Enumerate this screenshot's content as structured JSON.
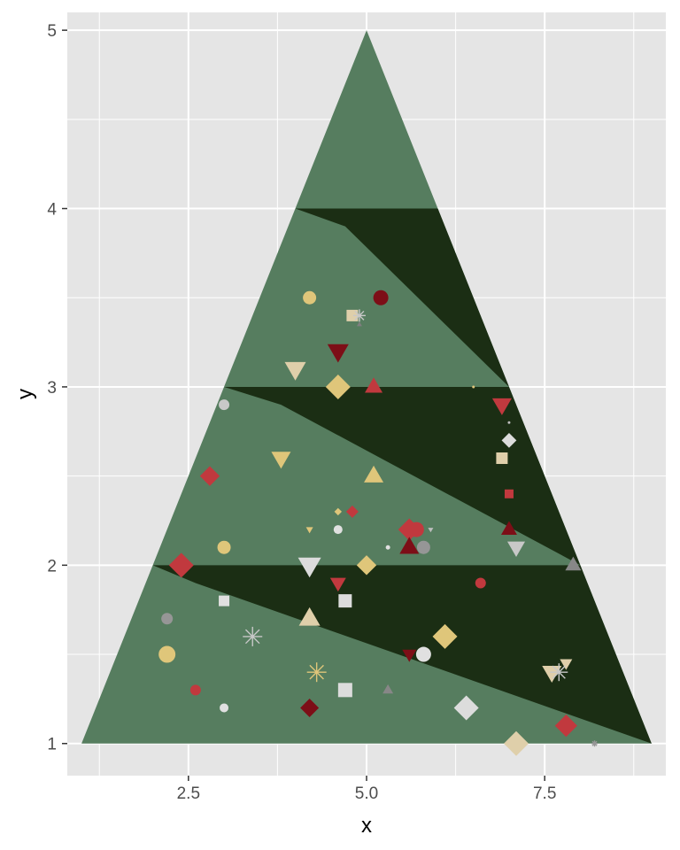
{
  "chart_data": {
    "type": "scatter",
    "title": "",
    "xlabel": "x",
    "ylabel": "y",
    "xlim": [
      0.8,
      9.2
    ],
    "ylim": [
      0.82,
      5.1
    ],
    "x_ticks": [
      2.5,
      5.0,
      7.5
    ],
    "x_tick_labels": [
      "2.5",
      "5.0",
      "7.5"
    ],
    "y_ticks": [
      1,
      2,
      3,
      4,
      5
    ],
    "y_tick_labels": [
      "1",
      "2",
      "3",
      "4",
      "5"
    ],
    "x_minor": [
      1.25,
      3.75,
      6.25,
      8.75
    ],
    "y_minor": [
      1.5,
      2.5,
      3.5,
      4.5
    ],
    "grid": true,
    "legend": "none",
    "colors": {
      "panel": "#e5e5e5",
      "grid": "#ffffff",
      "tree_light": "#567d5f",
      "tree_dark": "#1b2e14"
    },
    "tree_light": [
      [
        1,
        1
      ],
      [
        5,
        5
      ],
      [
        9,
        1
      ]
    ],
    "tree_dark": [
      [
        [
          4,
          4
        ],
        [
          6,
          4
        ],
        [
          7,
          3
        ],
        [
          4.7,
          3.9
        ]
      ],
      [
        [
          3,
          3
        ],
        [
          7,
          3
        ],
        [
          8,
          2
        ],
        [
          3.8,
          2.9
        ]
      ],
      [
        [
          2,
          2
        ],
        [
          8,
          2
        ],
        [
          9,
          1
        ],
        [
          2.6,
          1.9
        ]
      ]
    ],
    "points": [
      {
        "x": 4.2,
        "y": 3.5,
        "shape": "circle",
        "size": 15,
        "color": "#dfc67a"
      },
      {
        "x": 5.2,
        "y": 3.5,
        "shape": "circle",
        "size": 17,
        "color": "#7d0e17"
      },
      {
        "x": 4.8,
        "y": 3.4,
        "shape": "square",
        "size": 13,
        "color": "#dfcfaa"
      },
      {
        "x": 4.9,
        "y": 3.4,
        "shape": "asterisk",
        "size": 14,
        "color": "#c8c8c8"
      },
      {
        "x": 4.9,
        "y": 3.35,
        "shape": "triangle",
        "size": 6,
        "color": "#7f7f7f"
      },
      {
        "x": 4.0,
        "y": 3.1,
        "shape": "triangle-down",
        "size": 24,
        "color": "#dfcfaa"
      },
      {
        "x": 4.6,
        "y": 3.2,
        "shape": "triangle-down",
        "size": 24,
        "color": "#7d0e17"
      },
      {
        "x": 4.6,
        "y": 3.0,
        "shape": "diamond",
        "size": 20,
        "color": "#dfc67a"
      },
      {
        "x": 5.1,
        "y": 3.0,
        "shape": "triangle",
        "size": 20,
        "color": "#c1393e"
      },
      {
        "x": 3.0,
        "y": 2.9,
        "shape": "circle",
        "size": 12,
        "color": "#c8c8c8"
      },
      {
        "x": 6.5,
        "y": 3.0,
        "shape": "circle",
        "size": 3,
        "color": "#dfc67a"
      },
      {
        "x": 6.9,
        "y": 2.9,
        "shape": "triangle-down",
        "size": 22,
        "color": "#c1393e"
      },
      {
        "x": 7.0,
        "y": 2.8,
        "shape": "circle",
        "size": 3,
        "color": "#bebebe"
      },
      {
        "x": 7.0,
        "y": 2.7,
        "shape": "diamond",
        "size": 12,
        "color": "#dcdcdc"
      },
      {
        "x": 6.9,
        "y": 2.6,
        "shape": "square",
        "size": 13,
        "color": "#dfcfaa"
      },
      {
        "x": 2.8,
        "y": 2.5,
        "shape": "diamond",
        "size": 16,
        "color": "#c1393e"
      },
      {
        "x": 3.8,
        "y": 2.6,
        "shape": "triangle-down",
        "size": 22,
        "color": "#dfc67a"
      },
      {
        "x": 5.1,
        "y": 2.5,
        "shape": "triangle",
        "size": 22,
        "color": "#dfc67a"
      },
      {
        "x": 7.0,
        "y": 2.4,
        "shape": "square",
        "size": 10,
        "color": "#c1393e"
      },
      {
        "x": 7.0,
        "y": 2.2,
        "shape": "triangle",
        "size": 18,
        "color": "#7d0e17"
      },
      {
        "x": 7.1,
        "y": 2.1,
        "shape": "triangle-down",
        "size": 20,
        "color": "#c8c8c8"
      },
      {
        "x": 7.9,
        "y": 2.0,
        "shape": "triangle",
        "size": 18,
        "color": "#878787"
      },
      {
        "x": 4.6,
        "y": 2.3,
        "shape": "diamond",
        "size": 6,
        "color": "#dfc67a"
      },
      {
        "x": 4.8,
        "y": 2.3,
        "shape": "diamond",
        "size": 10,
        "color": "#c1393e"
      },
      {
        "x": 4.6,
        "y": 2.2,
        "shape": "circle",
        "size": 10,
        "color": "#e0e0e0"
      },
      {
        "x": 4.2,
        "y": 2.2,
        "shape": "triangle-down",
        "size": 8,
        "color": "#dfc67a"
      },
      {
        "x": 5.3,
        "y": 2.1,
        "shape": "circle",
        "size": 5,
        "color": "#e0e0e0"
      },
      {
        "x": 5.7,
        "y": 2.2,
        "shape": "circle",
        "size": 17,
        "color": "#c1393e"
      },
      {
        "x": 5.8,
        "y": 2.1,
        "shape": "circle",
        "size": 15,
        "color": "#969696"
      },
      {
        "x": 5.6,
        "y": 2.2,
        "shape": "diamond",
        "size": 18,
        "color": "#c1393e"
      },
      {
        "x": 5.6,
        "y": 2.1,
        "shape": "triangle",
        "size": 22,
        "color": "#7d0e17"
      },
      {
        "x": 5.9,
        "y": 2.2,
        "shape": "triangle-down",
        "size": 6,
        "color": "#bebebe"
      },
      {
        "x": 3.0,
        "y": 2.1,
        "shape": "circle",
        "size": 15,
        "color": "#dfc67a"
      },
      {
        "x": 2.4,
        "y": 2.0,
        "shape": "diamond",
        "size": 20,
        "color": "#c1393e"
      },
      {
        "x": 4.2,
        "y": 2.0,
        "shape": "triangle-down",
        "size": 26,
        "color": "#dcdcdc"
      },
      {
        "x": 5.0,
        "y": 2.0,
        "shape": "diamond",
        "size": 16,
        "color": "#dfc67a"
      },
      {
        "x": 4.6,
        "y": 1.9,
        "shape": "triangle-down",
        "size": 18,
        "color": "#c1393e"
      },
      {
        "x": 6.6,
        "y": 1.9,
        "shape": "circle",
        "size": 12,
        "color": "#c1393e"
      },
      {
        "x": 2.2,
        "y": 1.7,
        "shape": "circle",
        "size": 13,
        "color": "#969696"
      },
      {
        "x": 3.0,
        "y": 1.8,
        "shape": "square",
        "size": 12,
        "color": "#e0e0e0"
      },
      {
        "x": 4.7,
        "y": 1.8,
        "shape": "square",
        "size": 15,
        "color": "#dcdcdc"
      },
      {
        "x": 4.2,
        "y": 1.7,
        "shape": "triangle",
        "size": 24,
        "color": "#dfcfaa"
      },
      {
        "x": 3.4,
        "y": 1.6,
        "shape": "asterisk",
        "size": 22,
        "color": "#c8c8c8"
      },
      {
        "x": 6.1,
        "y": 1.6,
        "shape": "diamond",
        "size": 20,
        "color": "#dfc67a"
      },
      {
        "x": 2.2,
        "y": 1.5,
        "shape": "circle",
        "size": 19,
        "color": "#dfc67a"
      },
      {
        "x": 5.6,
        "y": 1.5,
        "shape": "triangle-down",
        "size": 16,
        "color": "#7d0e17"
      },
      {
        "x": 5.8,
        "y": 1.5,
        "shape": "circle",
        "size": 17,
        "color": "#e0e0e0"
      },
      {
        "x": 4.3,
        "y": 1.4,
        "shape": "asterisk",
        "size": 22,
        "color": "#dfc67a"
      },
      {
        "x": 7.6,
        "y": 1.4,
        "shape": "triangle-down",
        "size": 22,
        "color": "#dfcfaa"
      },
      {
        "x": 7.8,
        "y": 1.45,
        "shape": "triangle-down",
        "size": 14,
        "color": "#dfcfaa"
      },
      {
        "x": 7.7,
        "y": 1.4,
        "shape": "asterisk",
        "size": 20,
        "color": "#c8c8c8"
      },
      {
        "x": 2.6,
        "y": 1.3,
        "shape": "circle",
        "size": 12,
        "color": "#c1393e"
      },
      {
        "x": 4.7,
        "y": 1.3,
        "shape": "square",
        "size": 16,
        "color": "#dcdcdc"
      },
      {
        "x": 5.3,
        "y": 1.3,
        "shape": "triangle",
        "size": 12,
        "color": "#878787"
      },
      {
        "x": 3.0,
        "y": 1.2,
        "shape": "circle",
        "size": 10,
        "color": "#e0e0e0"
      },
      {
        "x": 4.2,
        "y": 1.2,
        "shape": "diamond",
        "size": 15,
        "color": "#7d0e17"
      },
      {
        "x": 6.4,
        "y": 1.2,
        "shape": "diamond",
        "size": 20,
        "color": "#dcdcdc"
      },
      {
        "x": 7.8,
        "y": 1.1,
        "shape": "diamond",
        "size": 18,
        "color": "#c1393e"
      },
      {
        "x": 7.1,
        "y": 1.0,
        "shape": "diamond",
        "size": 20,
        "color": "#dfcfaa"
      },
      {
        "x": 8.2,
        "y": 1.0,
        "shape": "asterisk",
        "size": 7,
        "color": "#969696"
      }
    ]
  }
}
